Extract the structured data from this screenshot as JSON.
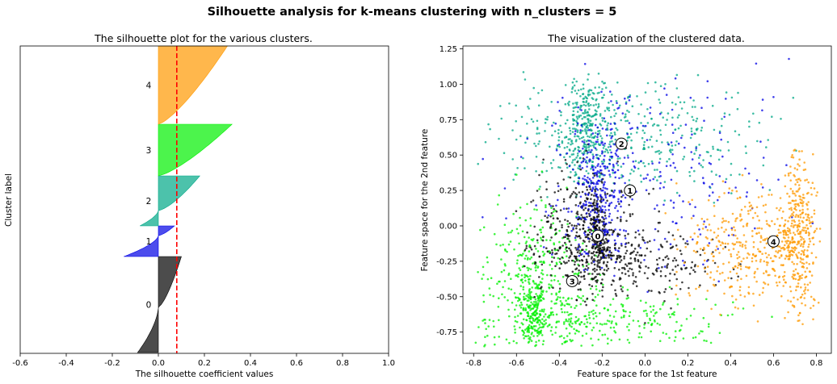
{
  "suptitle": "Silhouette analysis for k-means clustering with n_clusters = 5",
  "chart_data": [
    {
      "type": "area",
      "title": "The silhouette plot for the various clusters.",
      "xlabel": "The silhouette coefficient values",
      "ylabel": "Cluster label",
      "xlim": [
        -0.6,
        1.0
      ],
      "xticks": [
        "-0.6",
        "-0.4",
        "-0.2",
        "0.0",
        "0.2",
        "0.4",
        "0.6",
        "0.8",
        "1.0"
      ],
      "yticks": [],
      "grid": false,
      "average_silhouette": 0.08,
      "average_line_color": "#ff0000",
      "clusters": [
        {
          "label": "0",
          "color": "#000000",
          "min": -0.09,
          "max": 0.1
        },
        {
          "label": "1",
          "color": "#0000e6",
          "min": -0.15,
          "max": 0.07
        },
        {
          "label": "2",
          "color": "#00a887",
          "min": -0.08,
          "max": 0.18
        },
        {
          "label": "3",
          "color": "#00f000",
          "min": 0.0,
          "max": 0.32
        },
        {
          "label": "4",
          "color": "#ff9900",
          "min": 0.0,
          "max": 0.3
        }
      ]
    },
    {
      "type": "scatter",
      "title": "The visualization of the clustered data.",
      "xlabel": "Feature space for the 1st feature",
      "ylabel": "Feature space for the 2nd feature",
      "xlim": [
        -0.85,
        0.87
      ],
      "ylim": [
        -0.9,
        1.27
      ],
      "xticks": [
        "-0.8",
        "-0.6",
        "-0.4",
        "-0.2",
        "0.0",
        "0.2",
        "0.4",
        "0.6",
        "0.8"
      ],
      "yticks": [
        "-0.75",
        "-0.50",
        "-0.25",
        "0.00",
        "0.25",
        "0.50",
        "0.75",
        "1.00",
        "1.25"
      ],
      "grid": false,
      "centers": [
        {
          "label": "0",
          "x": -0.22,
          "y": -0.07,
          "color": "#000000"
        },
        {
          "label": "1",
          "x": -0.07,
          "y": 0.25,
          "color": "#0000e6"
        },
        {
          "label": "2",
          "x": -0.11,
          "y": 0.58,
          "color": "#00a887"
        },
        {
          "label": "3",
          "x": -0.34,
          "y": -0.39,
          "color": "#00f000"
        },
        {
          "label": "4",
          "x": 0.6,
          "y": -0.11,
          "color": "#ff9900"
        }
      ]
    }
  ]
}
